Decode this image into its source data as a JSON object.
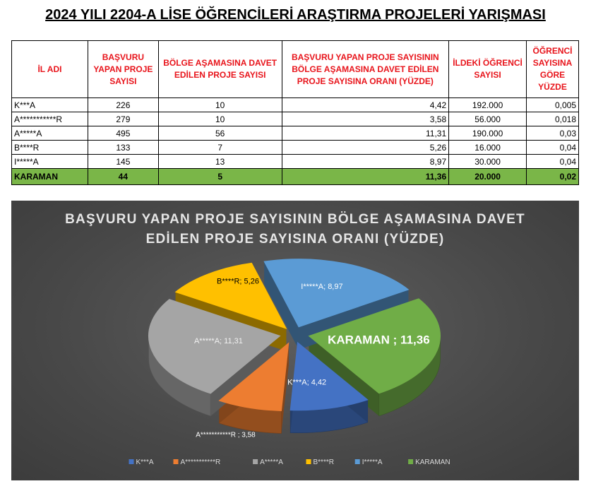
{
  "page": {
    "title": "2024 YILI 2204-A LİSE ÖĞRENCİLERİ ARAŞTIRMA PROJELERİ YARIŞMASI"
  },
  "table": {
    "headers": [
      "İL ADI",
      "BAŞVURU YAPAN PROJE SAYISI",
      "BÖLGE AŞAMASINA DAVET EDİLEN PROJE SAYISI",
      "BAŞVURU YAPAN PROJE SAYISININ BÖLGE AŞAMASINA DAVET EDİLEN PROJE SAYISINA ORANI (YÜZDE)",
      "İLDEKİ ÖĞRENCİ SAYISI",
      "ÖĞRENCİ SAYISINA GÖRE YÜZDE"
    ],
    "rows": [
      [
        "K***A",
        "226",
        "10",
        "4,42",
        "192.000",
        "0,005"
      ],
      [
        "A***********R",
        "279",
        "10",
        "3,58",
        "56.000",
        "0,018"
      ],
      [
        "A*****A",
        "495",
        "56",
        "11,31",
        "190.000",
        "0,03"
      ],
      [
        "B****R",
        "133",
        "7",
        "5,26",
        "16.000",
        "0,04"
      ],
      [
        "I*****A",
        "145",
        "13",
        "8,97",
        "30.000",
        "0,04"
      ],
      [
        "KARAMAN",
        "44",
        "5",
        "11,36",
        "20.000",
        "0,02"
      ]
    ]
  },
  "chart_data": {
    "type": "pie",
    "title": "BAŞVURU YAPAN PROJE SAYISININ BÖLGE AŞAMASINA DAVET EDİLEN PROJE SAYISINA ORANI (YÜZDE)",
    "categories": [
      "K***A",
      "A***********R",
      "A*****A",
      "B****R",
      "I*****A",
      "KARAMAN"
    ],
    "values": [
      4.42,
      3.58,
      11.31,
      5.26,
      8.97,
      11.36
    ],
    "data_labels": [
      "K***A; 4,42",
      "A***********R ; 3,58",
      "A*****A; 11,31",
      "B****R; 5,26",
      "I*****A; 8,97",
      "KARAMAN ; 11,36"
    ],
    "colors": [
      "#4472c4",
      "#ed7d31",
      "#a5a5a5",
      "#ffc000",
      "#5b9bd5",
      "#70ad47"
    ],
    "legend_position": "bottom",
    "three_d": true,
    "exploded": true
  }
}
